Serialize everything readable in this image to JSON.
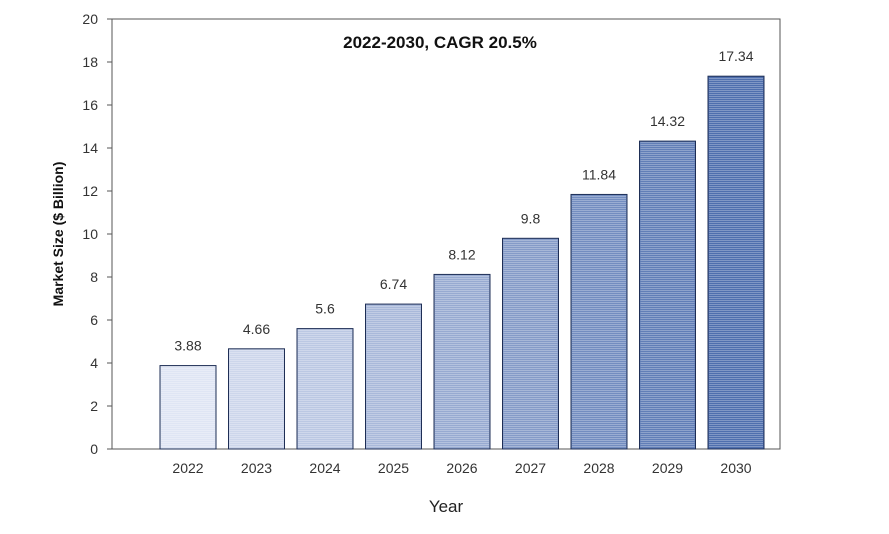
{
  "chart_data": {
    "type": "bar",
    "title": "2022-2030, CAGR 20.5%",
    "xlabel": "Year",
    "ylabel": "Market Size ($ Billion)",
    "categories": [
      "2022",
      "2023",
      "2024",
      "2025",
      "2026",
      "2027",
      "2028",
      "2029",
      "2030"
    ],
    "values": [
      3.88,
      4.66,
      5.6,
      6.74,
      8.12,
      9.8,
      11.84,
      14.32,
      17.34
    ],
    "value_labels": [
      "3.88",
      "4.66",
      "5.6",
      "6.74",
      "8.12",
      "9.8",
      "11.84",
      "14.32",
      "17.34"
    ],
    "ylim": [
      0,
      20
    ],
    "yticks": [
      "0",
      "2",
      "4",
      "6",
      "8",
      "10",
      "12",
      "14",
      "16",
      "18",
      "20"
    ],
    "grid": false,
    "legend": "none",
    "colors": {
      "bar_light": "#dfe5f4",
      "bar_dark": "#4f6fae",
      "bar_edge": "#1e2e55",
      "frame": "#555555"
    }
  }
}
